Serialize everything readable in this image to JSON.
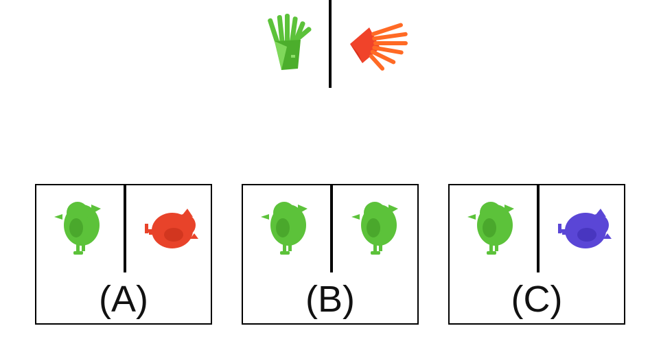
{
  "prompt": {
    "left_item": {
      "object": "fries",
      "color": "#5cc23a",
      "orientation": "upright",
      "icon": "fries-icon"
    },
    "right_item": {
      "object": "fries",
      "color": "#f0432a",
      "orientation": "rotated-90",
      "icon": "fries-icon"
    }
  },
  "options": [
    {
      "label": "(A)",
      "left_item": {
        "object": "bird",
        "color": "#5cc23a",
        "orientation": "upright",
        "icon": "bird-icon"
      },
      "right_item": {
        "object": "bird",
        "color": "#e8432a",
        "orientation": "rotated-90",
        "icon": "bird-icon"
      }
    },
    {
      "label": "(B)",
      "left_item": {
        "object": "bird",
        "color": "#5cc23a",
        "orientation": "upright",
        "icon": "bird-icon"
      },
      "right_item": {
        "object": "bird",
        "color": "#5cc23a",
        "orientation": "upright",
        "icon": "bird-icon"
      }
    },
    {
      "label": "(C)",
      "left_item": {
        "object": "bird",
        "color": "#5cc23a",
        "orientation": "upright",
        "icon": "bird-icon"
      },
      "right_item": {
        "object": "bird",
        "color": "#5a46d6",
        "orientation": "rotated-90",
        "icon": "bird-icon"
      }
    }
  ]
}
